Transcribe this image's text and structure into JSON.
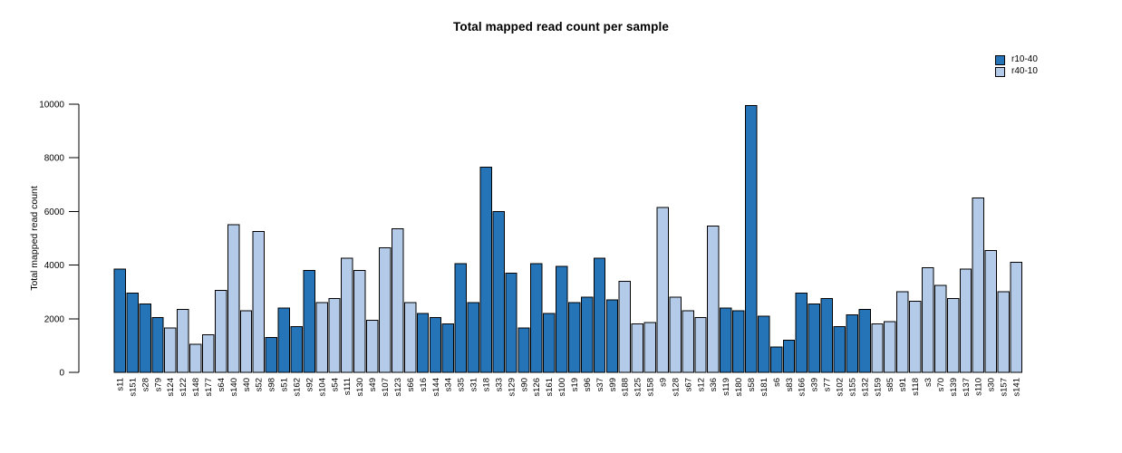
{
  "title": "Total mapped read count per sample",
  "chart_data": {
    "type": "bar",
    "title": "Total mapped read count per sample",
    "xlabel": "",
    "ylabel": "Total mapped read count",
    "ylim": [
      0,
      10000
    ],
    "yticks": [
      0,
      2000,
      4000,
      6000,
      8000,
      10000
    ],
    "grid": false,
    "legend_position": "top-right",
    "legend": [
      {
        "label": "r10-40",
        "color": "#2474b7"
      },
      {
        "label": "r40-10",
        "color": "#b3cbe8"
      }
    ],
    "bar_border_color": "#000000",
    "categories": [
      "s11",
      "s151",
      "s28",
      "s79",
      "s124",
      "s122",
      "s148",
      "s177",
      "s64",
      "s140",
      "s40",
      "s52",
      "s98",
      "s51",
      "s162",
      "s92",
      "s104",
      "s54",
      "s111",
      "s130",
      "s49",
      "s107",
      "s123",
      "s66",
      "s16",
      "s144",
      "s34",
      "s35",
      "s31",
      "s18",
      "s33",
      "s129",
      "s90",
      "s126",
      "s161",
      "s100",
      "s19",
      "s96",
      "s37",
      "s99",
      "s188",
      "s125",
      "s158",
      "s9",
      "s128",
      "s67",
      "s12",
      "s36",
      "s119",
      "s180",
      "s58",
      "s181",
      "s6",
      "s83",
      "s166",
      "s39",
      "s77",
      "s102",
      "s155",
      "s132",
      "s159",
      "s85",
      "s91",
      "s118",
      "s3",
      "s70",
      "s139",
      "s137",
      "s110",
      "s30",
      "s157",
      "s141"
    ],
    "values": [
      3850,
      2950,
      2550,
      2050,
      1650,
      2350,
      1050,
      1400,
      3050,
      5500,
      2300,
      5250,
      1300,
      2400,
      1700,
      3800,
      2600,
      2750,
      4250,
      3800,
      1950,
      4650,
      5350,
      2600,
      2200,
      2050,
      1800,
      4050,
      2600,
      7650,
      6000,
      3700,
      1650,
      4050,
      2200,
      3950,
      2600,
      2800,
      4250,
      2700,
      3400,
      1800,
      1850,
      6150,
      2800,
      2300,
      2050,
      5450,
      2400,
      2300,
      9950,
      2100,
      950,
      1200,
      2950,
      2550,
      2750,
      1700,
      2150,
      2350,
      1800,
      1900,
      3000,
      2650,
      3900,
      3250,
      2750,
      3850,
      6500,
      4550,
      3000,
      4100
    ],
    "groups": [
      "r10-40",
      "r10-40",
      "r10-40",
      "r10-40",
      "r40-10",
      "r40-10",
      "r40-10",
      "r40-10",
      "r40-10",
      "r40-10",
      "r40-10",
      "r40-10",
      "r10-40",
      "r10-40",
      "r10-40",
      "r10-40",
      "r40-10",
      "r40-10",
      "r40-10",
      "r40-10",
      "r40-10",
      "r40-10",
      "r40-10",
      "r40-10",
      "r10-40",
      "r10-40",
      "r10-40",
      "r10-40",
      "r10-40",
      "r10-40",
      "r10-40",
      "r10-40",
      "r10-40",
      "r10-40",
      "r10-40",
      "r10-40",
      "r10-40",
      "r10-40",
      "r10-40",
      "r10-40",
      "r40-10",
      "r40-10",
      "r40-10",
      "r40-10",
      "r40-10",
      "r40-10",
      "r40-10",
      "r40-10",
      "r10-40",
      "r10-40",
      "r10-40",
      "r10-40",
      "r10-40",
      "r10-40",
      "r10-40",
      "r10-40",
      "r10-40",
      "r10-40",
      "r10-40",
      "r10-40",
      "r40-10",
      "r40-10",
      "r40-10",
      "r40-10",
      "r40-10",
      "r40-10",
      "r40-10",
      "r40-10",
      "r40-10",
      "r40-10",
      "r40-10",
      "r40-10"
    ]
  }
}
